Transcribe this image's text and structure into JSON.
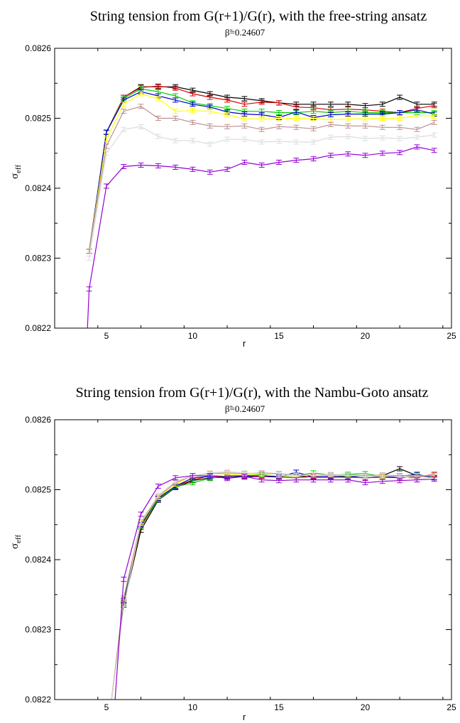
{
  "chart_data": [
    {
      "type": "line",
      "title": "String tension from G(r+1)/G(r), with the free-string ansatz",
      "subtitle": "β̃=0.24607",
      "xlabel": "r",
      "ylabel": "σ",
      "ylabel_sub": "eff",
      "xlim": [
        2,
        25
      ],
      "ylim": [
        0.0822,
        0.0826
      ],
      "xticks": [
        5,
        10,
        15,
        20,
        25
      ],
      "yticks": [
        0.0822,
        0.0823,
        0.0824,
        0.0825,
        0.0826
      ],
      "xtick_labels": [
        "5",
        "10",
        "15",
        "20",
        "25"
      ],
      "ytick_labels": [
        "0.0822",
        "0.0823",
        "0.0824",
        "0.0825",
        "0.0826"
      ],
      "grid": false,
      "series": [
        {
          "color": "#000000",
          "x": [
            4,
            5,
            6,
            7,
            8,
            9,
            10,
            11,
            12,
            13,
            14,
            15,
            16,
            17,
            18,
            19,
            20,
            21,
            22,
            23,
            24
          ],
          "y": [
            0.08231,
            0.08248,
            0.08253,
            0.082545,
            0.082545,
            0.082545,
            0.08254,
            0.082535,
            0.08253,
            0.082528,
            0.082525,
            0.082522,
            0.08252,
            0.08252,
            0.08252,
            0.08252,
            0.082518,
            0.08252,
            0.08253,
            0.08252,
            0.08252
          ]
        },
        {
          "color": "#dd0000",
          "x": [
            4,
            5,
            6,
            7,
            8,
            9,
            10,
            11,
            12,
            13,
            14,
            15,
            16,
            17,
            18,
            19,
            20,
            21,
            22,
            23,
            24
          ],
          "y": [
            0.08231,
            0.08248,
            0.08253,
            0.082544,
            0.082546,
            0.082543,
            0.082535,
            0.08253,
            0.082526,
            0.08252,
            0.082523,
            0.082522,
            0.082516,
            0.082515,
            0.082512,
            0.082513,
            0.082512,
            0.08251,
            0.082508,
            0.082514,
            0.082518
          ]
        },
        {
          "color": "#00cc00",
          "x": [
            4,
            5,
            6,
            7,
            8,
            9,
            10,
            11,
            12,
            13,
            14,
            15,
            16,
            17,
            18,
            19,
            20,
            21,
            22,
            23,
            24
          ],
          "y": [
            0.08231,
            0.08248,
            0.082528,
            0.082542,
            0.082538,
            0.082532,
            0.082522,
            0.082518,
            0.082514,
            0.08251,
            0.08251,
            0.082508,
            0.082508,
            0.08251,
            0.082508,
            0.08251,
            0.082508,
            0.082508,
            0.082508,
            0.082508,
            0.082508
          ]
        },
        {
          "color": "#0000cc",
          "x": [
            4,
            5,
            6,
            7,
            8,
            9,
            10,
            11,
            12,
            13,
            14,
            15,
            16,
            17,
            18,
            19,
            20,
            21,
            22,
            23,
            24
          ],
          "y": [
            0.08231,
            0.08248,
            0.082526,
            0.082538,
            0.082532,
            0.082526,
            0.08252,
            0.082516,
            0.082509,
            0.082506,
            0.082505,
            0.082501,
            0.082509,
            0.082501,
            0.082505,
            0.082506,
            0.082506,
            0.082506,
            0.082508,
            0.082512,
            0.082506
          ]
        },
        {
          "color": "#ffff00",
          "x": [
            4,
            5,
            6,
            7,
            8,
            9,
            10,
            11,
            12,
            13,
            14,
            15,
            16,
            17,
            18,
            19,
            20,
            21,
            22,
            23,
            24
          ],
          "y": [
            0.08231,
            0.08247,
            0.08252,
            0.082535,
            0.082528,
            0.08251,
            0.082511,
            0.08251,
            0.082505,
            0.082499,
            0.082499,
            0.082499,
            0.0825,
            0.0825,
            0.082498,
            0.082499,
            0.082499,
            0.0825,
            0.0825,
            0.082504,
            0.082503
          ]
        },
        {
          "color": "#bc8f8f",
          "x": [
            4,
            5,
            6,
            7,
            8,
            9,
            10,
            11,
            12,
            13,
            14,
            15,
            16,
            17,
            18,
            19,
            20,
            21,
            22,
            23,
            24
          ],
          "y": [
            0.08231,
            0.08246,
            0.08251,
            0.082517,
            0.0825,
            0.0825,
            0.082494,
            0.082489,
            0.082488,
            0.082489,
            0.082484,
            0.082488,
            0.082487,
            0.082485,
            0.082491,
            0.082489,
            0.082489,
            0.082487,
            0.082487,
            0.082484,
            0.082494
          ]
        },
        {
          "color": "#dcdcdc",
          "x": [
            4,
            5,
            6,
            7,
            8,
            9,
            10,
            11,
            12,
            13,
            14,
            15,
            16,
            17,
            18,
            19,
            20,
            21,
            22,
            23,
            24
          ],
          "y": [
            0.0823,
            0.08245,
            0.082484,
            0.082488,
            0.082474,
            0.082468,
            0.082468,
            0.082463,
            0.08247,
            0.08247,
            0.082466,
            0.082467,
            0.082466,
            0.082466,
            0.082473,
            0.082474,
            0.082471,
            0.082472,
            0.082471,
            0.082473,
            0.082476
          ]
        },
        {
          "color": "#9400d3",
          "x": [
            3.9,
            4,
            5,
            6,
            7,
            8,
            9,
            10,
            11,
            12,
            13,
            14,
            15,
            16,
            17,
            18,
            19,
            20,
            21,
            22,
            23,
            24
          ],
          "y": [
            0.0822,
            0.082256,
            0.082403,
            0.082431,
            0.082433,
            0.082432,
            0.08243,
            0.082427,
            0.082423,
            0.082427,
            0.082437,
            0.082433,
            0.082437,
            0.08244,
            0.082442,
            0.082447,
            0.082449,
            0.082447,
            0.08245,
            0.082451,
            0.082459,
            0.082454
          ]
        }
      ]
    },
    {
      "type": "line",
      "title": "String tension from G(r+1)/G(r), with the Nambu-Goto ansatz",
      "subtitle": "β̃=0.24607",
      "xlabel": "r",
      "ylabel": "σ",
      "ylabel_sub": "eff",
      "xlim": [
        2,
        25
      ],
      "ylim": [
        0.0822,
        0.0826
      ],
      "xticks": [
        5,
        10,
        15,
        20,
        25
      ],
      "yticks": [
        0.0822,
        0.0823,
        0.0824,
        0.0825,
        0.0826
      ],
      "xtick_labels": [
        "5",
        "10",
        "15",
        "20",
        "25"
      ],
      "ytick_labels": [
        "0.0822",
        "0.0823",
        "0.0824",
        "0.0825",
        "0.0826"
      ],
      "grid": false,
      "series": [
        {
          "color": "#000000",
          "x": [
            5.3,
            6,
            7,
            8,
            9,
            10,
            11,
            12,
            13,
            14,
            15,
            16,
            17,
            18,
            19,
            20,
            21,
            22,
            23,
            24
          ],
          "y": [
            0.0822,
            0.082335,
            0.082442,
            0.082485,
            0.082503,
            0.082513,
            0.082517,
            0.082518,
            0.08252,
            0.08252,
            0.082519,
            0.08252,
            0.082518,
            0.082518,
            0.08252,
            0.082519,
            0.08252,
            0.08253,
            0.08252,
            0.082518
          ]
        },
        {
          "color": "#dd0000",
          "x": [
            5.3,
            6,
            7,
            8,
            9,
            10,
            11,
            12,
            13,
            14,
            15,
            16,
            17,
            18,
            19,
            20,
            21,
            22,
            23,
            24
          ],
          "y": [
            0.0822,
            0.082338,
            0.082446,
            0.082487,
            0.082505,
            0.082514,
            0.08252,
            0.082519,
            0.082518,
            0.082519,
            0.082518,
            0.082517,
            0.082519,
            0.082518,
            0.082518,
            0.082517,
            0.082518,
            0.082517,
            0.082518,
            0.082522
          ]
        },
        {
          "color": "#00cc00",
          "x": [
            5.3,
            6,
            7,
            8,
            9,
            10,
            11,
            12,
            13,
            14,
            15,
            16,
            17,
            18,
            19,
            20,
            21,
            22,
            23,
            24
          ],
          "y": [
            0.0822,
            0.08234,
            0.082448,
            0.082486,
            0.082504,
            0.08251,
            0.082516,
            0.08252,
            0.082521,
            0.082522,
            0.082519,
            0.08252,
            0.082524,
            0.082521,
            0.082522,
            0.082523,
            0.082519,
            0.08252,
            0.082521,
            0.082518
          ]
        },
        {
          "color": "#0000cc",
          "x": [
            5.3,
            6,
            7,
            8,
            9,
            10,
            11,
            12,
            13,
            14,
            15,
            16,
            17,
            18,
            19,
            20,
            21,
            22,
            23,
            24
          ],
          "y": [
            0.0822,
            0.082342,
            0.08245,
            0.082488,
            0.082505,
            0.082517,
            0.082519,
            0.082518,
            0.082519,
            0.08252,
            0.082518,
            0.082525,
            0.082518,
            0.082519,
            0.082518,
            0.08252,
            0.082518,
            0.082519,
            0.082522,
            0.082517
          ]
        },
        {
          "color": "#ffff00",
          "x": [
            5.3,
            6,
            7,
            8,
            9,
            10,
            11,
            12,
            13,
            14,
            15,
            16,
            17,
            18,
            19,
            20,
            21,
            22,
            23,
            24
          ],
          "y": [
            0.0822,
            0.082345,
            0.082452,
            0.082489,
            0.082508,
            0.08252,
            0.082524,
            0.082522,
            0.082521,
            0.082521,
            0.08252,
            0.08252,
            0.082521,
            0.08252,
            0.08252,
            0.08252,
            0.082519,
            0.08252,
            0.08252,
            0.08252
          ]
        },
        {
          "color": "#bc8f8f",
          "x": [
            5.3,
            6,
            7,
            8,
            9,
            10,
            11,
            12,
            13,
            14,
            15,
            16,
            17,
            18,
            19,
            20,
            21,
            22,
            23,
            24
          ],
          "y": [
            0.0822,
            0.082345,
            0.082454,
            0.08249,
            0.08251,
            0.08252,
            0.082523,
            0.082524,
            0.082523,
            0.082524,
            0.082523,
            0.082521,
            0.082521,
            0.082521,
            0.082521,
            0.08252,
            0.082521,
            0.08252,
            0.082519,
            0.082521
          ]
        },
        {
          "color": "#dcdcdc",
          "x": [
            5.3,
            6,
            7,
            8,
            9,
            10,
            11,
            12,
            13,
            14,
            15,
            16,
            17,
            18,
            19,
            20,
            21,
            22,
            23,
            24
          ],
          "y": [
            0.0822,
            0.08233,
            0.082455,
            0.082492,
            0.082512,
            0.08252,
            0.082524,
            0.082526,
            0.082524,
            0.082523,
            0.082522,
            0.082521,
            0.082521,
            0.082522,
            0.082521,
            0.082519,
            0.08252,
            0.082519,
            0.082515,
            0.082518
          ]
        },
        {
          "color": "#9400d3",
          "x": [
            5.5,
            6,
            7,
            8,
            9,
            10,
            11,
            12,
            13,
            14,
            15,
            16,
            17,
            18,
            19,
            20,
            21,
            22,
            23,
            24
          ],
          "y": [
            0.0822,
            0.082372,
            0.082465,
            0.082505,
            0.082517,
            0.08252,
            0.08252,
            0.082516,
            0.082519,
            0.082514,
            0.082513,
            0.082514,
            0.082514,
            0.082514,
            0.082514,
            0.08251,
            0.082512,
            0.082513,
            0.082514,
            0.082515
          ]
        }
      ]
    }
  ]
}
